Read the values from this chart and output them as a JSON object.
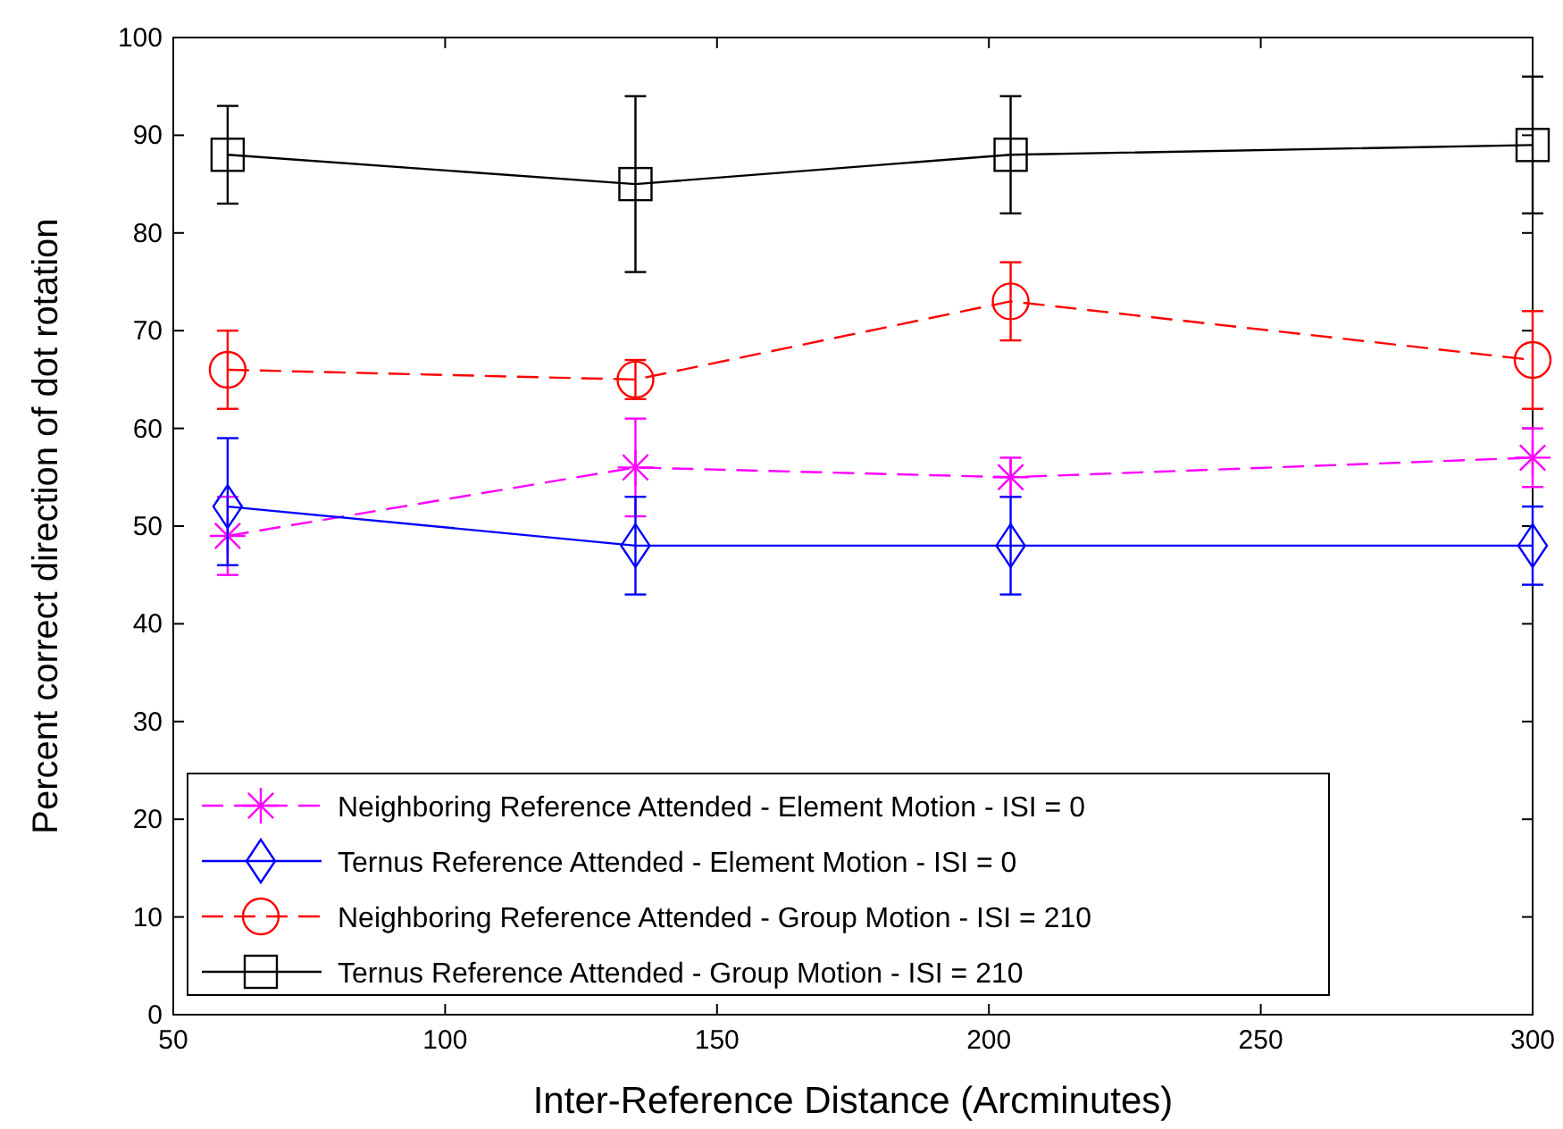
{
  "chart_data": {
    "type": "line",
    "xlabel": "Inter-Reference Distance (Arcminutes)",
    "ylabel": "Percent correct direction of dot rotation",
    "x": [
      60,
      135,
      204,
      300
    ],
    "xlim": [
      50,
      300
    ],
    "xticks": [
      50,
      100,
      150,
      200,
      250,
      300
    ],
    "ylim": [
      0,
      100
    ],
    "yticks": [
      0,
      10,
      20,
      30,
      40,
      50,
      60,
      70,
      80,
      90,
      100
    ],
    "grid": false,
    "legend": "bottom left",
    "series": [
      {
        "name": "Neighboring Reference Attended - Element Motion - ISI = 0",
        "color": "#ff00ff",
        "marker": "cross",
        "line_style": "dashed",
        "values": [
          49,
          56,
          55,
          57
        ],
        "errors": [
          [
            45,
            53
          ],
          [
            51,
            61
          ],
          [
            53,
            57
          ],
          [
            54,
            60
          ]
        ]
      },
      {
        "name": "Ternus Reference Attended - Element Motion - ISI = 0",
        "color": "#0000ff",
        "marker": "diamond",
        "line_style": "solid",
        "values": [
          52,
          48,
          48,
          48
        ],
        "errors": [
          [
            46,
            59
          ],
          [
            43,
            53
          ],
          [
            43,
            53
          ],
          [
            44,
            52
          ]
        ]
      },
      {
        "name": "Neighboring Reference Attended - Group Motion - ISI = 210",
        "color": "#ff0000",
        "marker": "circle",
        "line_style": "dashed",
        "values": [
          66,
          65,
          73,
          67
        ],
        "errors": [
          [
            62,
            70
          ],
          [
            63,
            67
          ],
          [
            69,
            77
          ],
          [
            62,
            72
          ]
        ]
      },
      {
        "name": "Ternus Reference Attended - Group Motion - ISI = 210",
        "color": "#000000",
        "marker": "square",
        "line_style": "solid",
        "values": [
          88,
          85,
          88,
          89
        ],
        "errors": [
          [
            83,
            93
          ],
          [
            76,
            94
          ],
          [
            82,
            94
          ],
          [
            82,
            96
          ]
        ]
      }
    ]
  }
}
